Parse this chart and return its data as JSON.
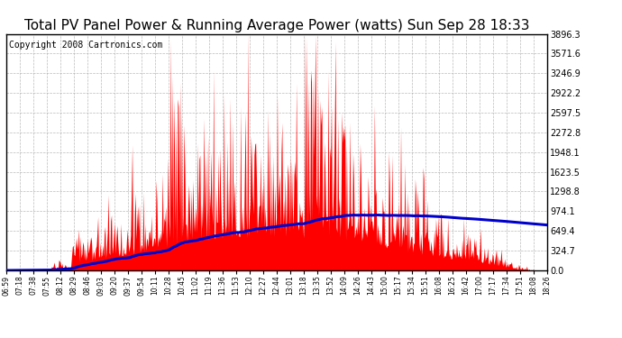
{
  "title": "Total PV Panel Power & Running Average Power (watts) Sun Sep 28 18:33",
  "copyright_text": "Copyright 2008 Cartronics.com",
  "ylabel_right_ticks": [
    0.0,
    324.7,
    649.4,
    974.1,
    1298.8,
    1623.5,
    1948.1,
    2272.8,
    2597.5,
    2922.2,
    3246.9,
    3571.6,
    3896.3
  ],
  "ymax": 3896.3,
  "ymin": 0.0,
  "bar_color": "#ff0000",
  "line_color": "#0000cc",
  "background_color": "#ffffff",
  "grid_color": "#aaaaaa",
  "title_color": "#000000",
  "title_fontsize": 11,
  "copyright_fontsize": 7,
  "x_tick_labels": [
    "06:59",
    "07:18",
    "07:38",
    "07:55",
    "08:12",
    "08:29",
    "08:46",
    "09:03",
    "09:20",
    "09:37",
    "09:54",
    "10:11",
    "10:28",
    "10:45",
    "11:02",
    "11:19",
    "11:36",
    "11:53",
    "12:10",
    "12:27",
    "12:44",
    "13:01",
    "13:18",
    "13:35",
    "13:52",
    "14:09",
    "14:26",
    "14:43",
    "15:00",
    "15:17",
    "15:34",
    "15:51",
    "16:08",
    "16:25",
    "16:42",
    "17:00",
    "17:17",
    "17:34",
    "17:51",
    "18:08",
    "18:26"
  ],
  "num_points": 680,
  "spike_seed": 7
}
